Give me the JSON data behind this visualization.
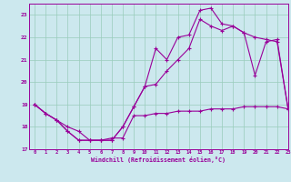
{
  "bg_color": "#cce8ee",
  "grid_color": "#99ccbb",
  "line_color": "#990099",
  "xlim": [
    -0.5,
    23
  ],
  "ylim": [
    17,
    23.5
  ],
  "yticks": [
    17,
    18,
    19,
    20,
    21,
    22,
    23
  ],
  "xlabel": "Windchill (Refroidissement éolien,°C)",
  "hours": [
    0,
    1,
    2,
    3,
    4,
    5,
    6,
    7,
    8,
    9,
    10,
    11,
    12,
    13,
    14,
    15,
    16,
    17,
    18,
    19,
    20,
    21,
    22,
    23
  ],
  "line_bottom": [
    19.0,
    18.6,
    18.3,
    18.0,
    17.8,
    17.4,
    17.4,
    17.5,
    17.5,
    18.5,
    18.5,
    18.6,
    18.6,
    18.7,
    18.7,
    18.7,
    18.8,
    18.8,
    18.8,
    18.9,
    18.9,
    18.9,
    18.9,
    18.8
  ],
  "line_mid": [
    19.0,
    18.6,
    18.3,
    17.8,
    17.4,
    17.4,
    17.4,
    17.4,
    18.0,
    18.9,
    19.8,
    19.9,
    20.5,
    21.0,
    21.5,
    22.8,
    22.5,
    22.3,
    22.5,
    22.2,
    22.0,
    21.9,
    21.8,
    18.8
  ],
  "line_top": [
    19.0,
    18.6,
    18.3,
    17.8,
    17.4,
    17.4,
    17.4,
    17.4,
    18.0,
    18.9,
    19.8,
    21.5,
    21.0,
    22.0,
    22.1,
    23.2,
    23.3,
    22.6,
    22.5,
    22.2,
    20.3,
    21.8,
    21.9,
    18.8
  ]
}
